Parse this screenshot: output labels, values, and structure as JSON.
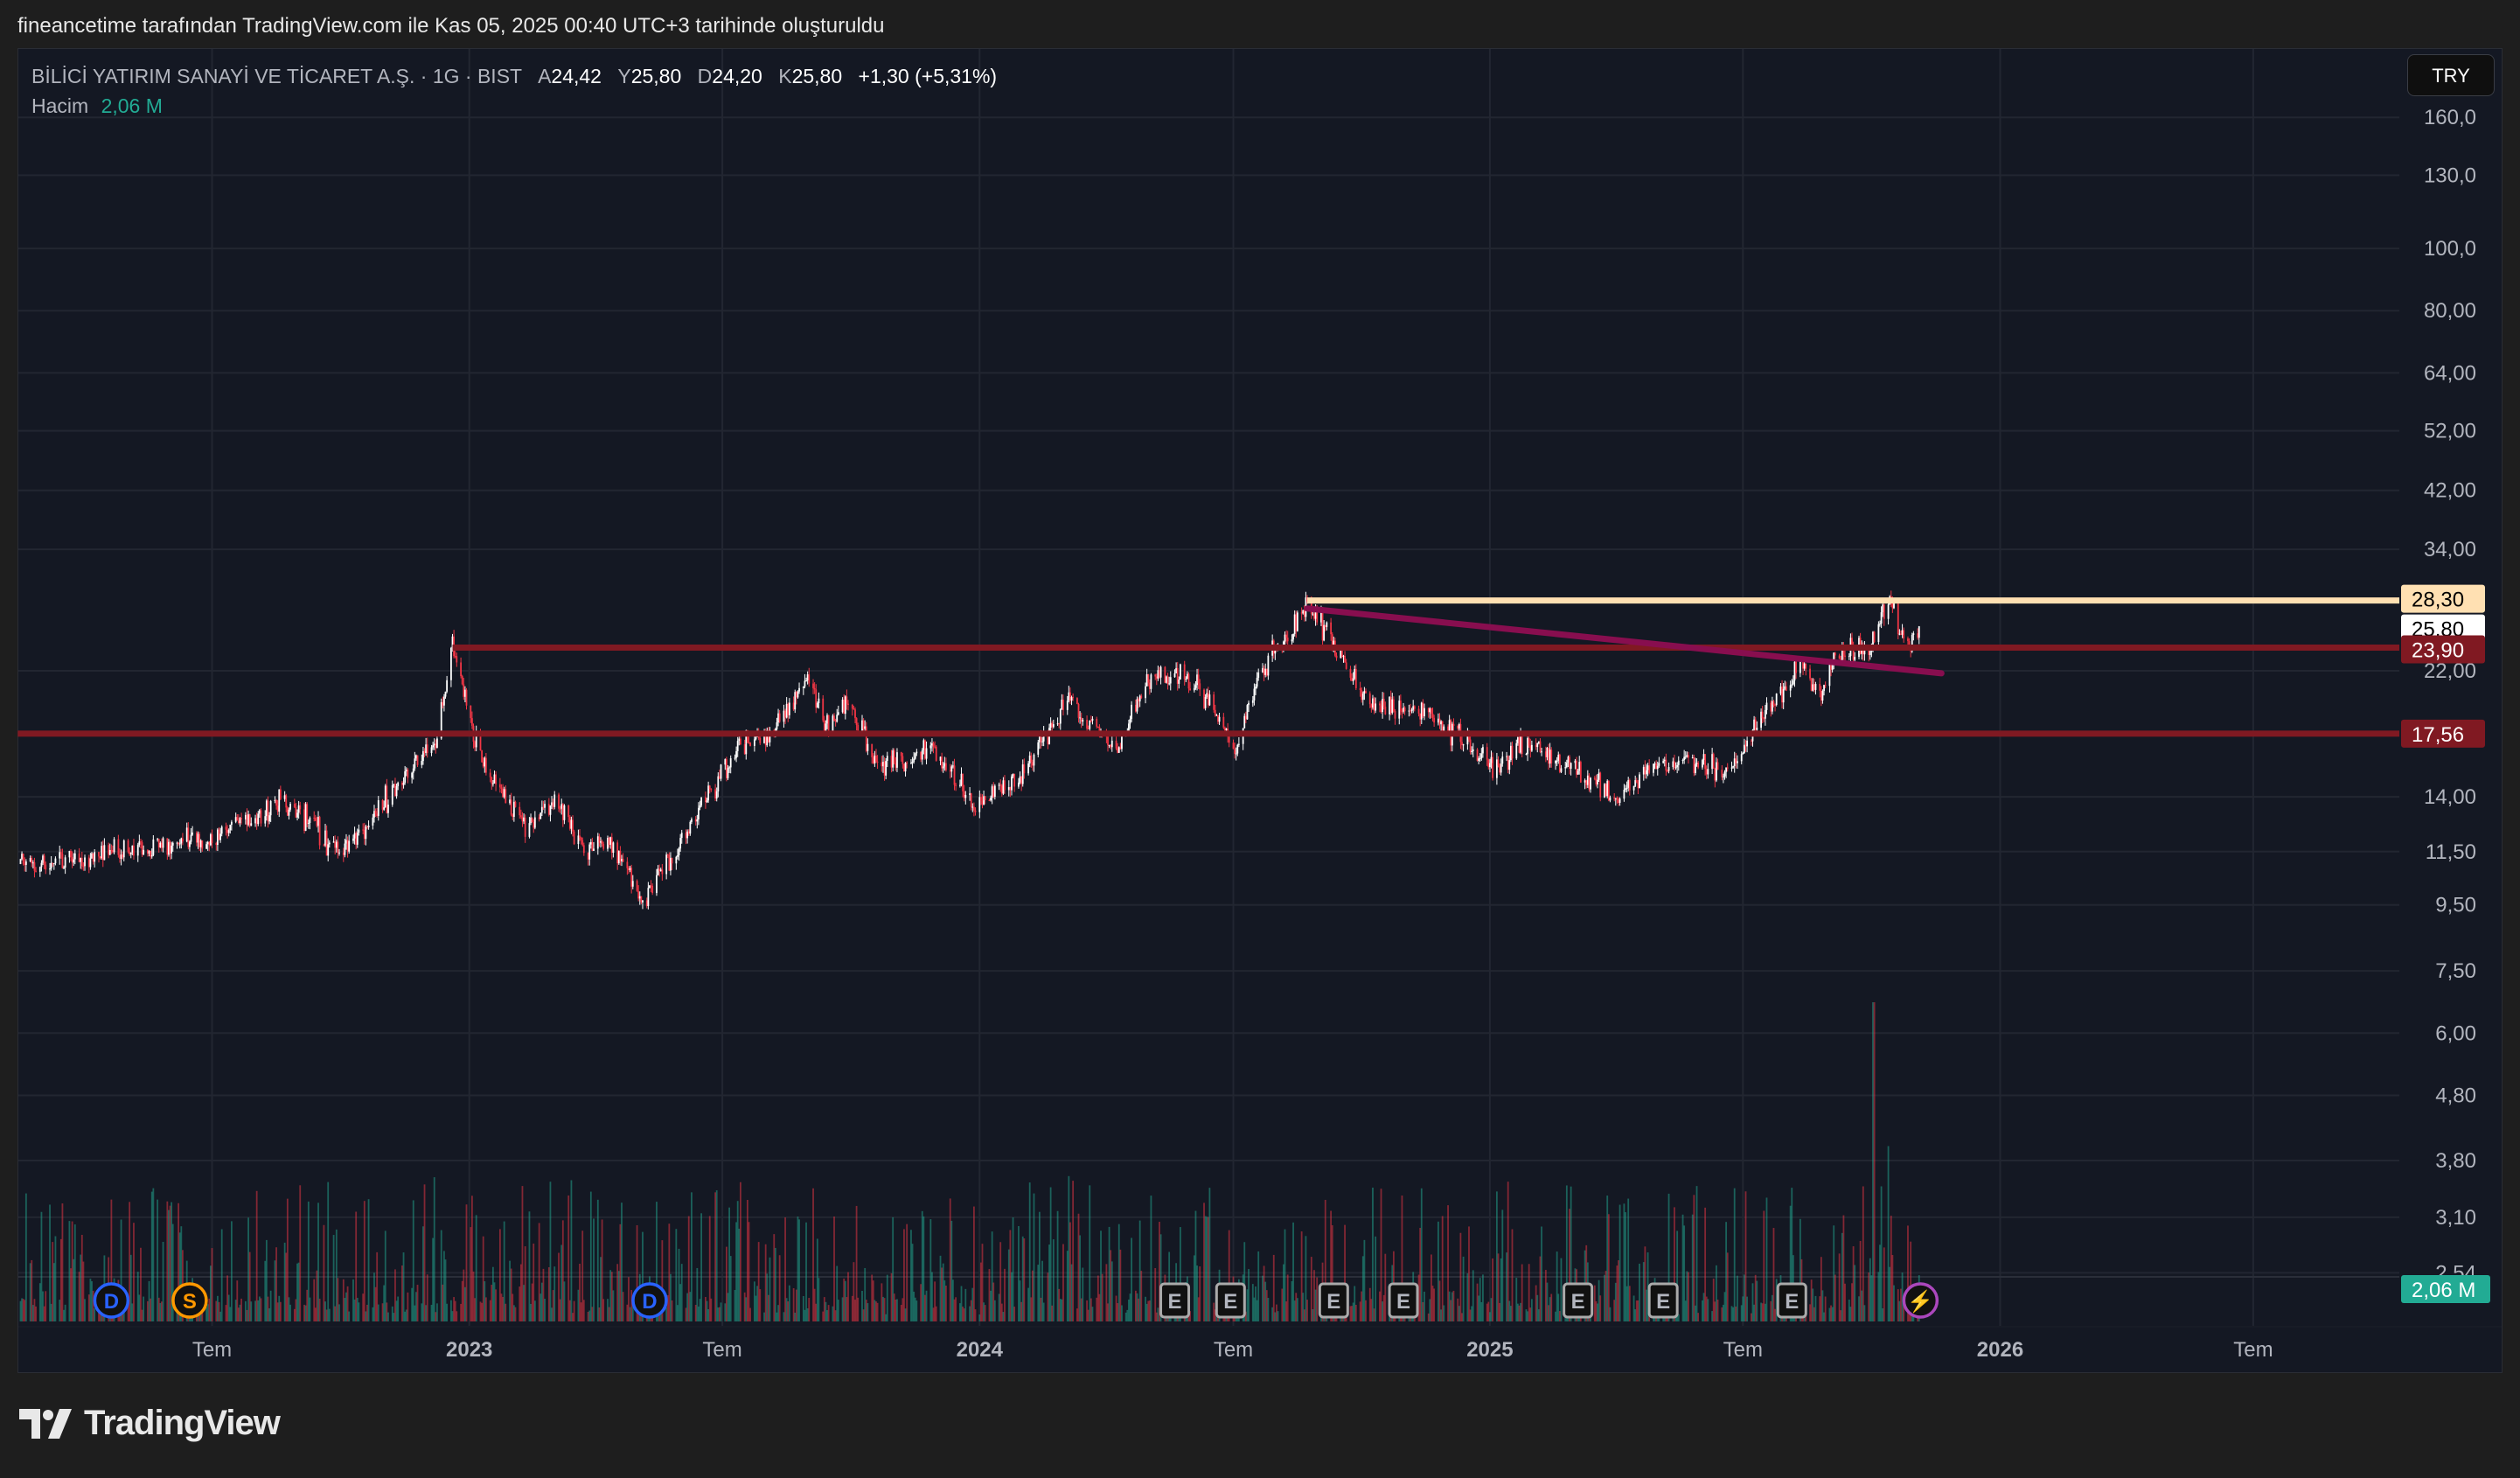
{
  "top_bar": {
    "caption": "fineancetime tarafından TradingView.com ile Kas 05, 2025 00:40 UTC+3 tarihinde oluşturuldu"
  },
  "legend": {
    "symbol": "BİLİCİ YATIRIM SANAYİ VE TİCARET A.Ş. · 1G · BIST",
    "open_label": "A",
    "open": "24,42",
    "high_label": "Y",
    "high": "25,80",
    "low_label": "D",
    "low": "24,20",
    "close_label": "K",
    "close": "25,80",
    "change": "+1,30 (+5,31%)",
    "volume_label": "Hacim",
    "volume": "2,06 M"
  },
  "currency_button": "TRY",
  "footer": {
    "brand": "TradingView"
  },
  "colors": {
    "up": "#ffffff",
    "down": "#f23645",
    "vol_up": "#22ab94",
    "vol_down": "#f23645",
    "resistance": "#ffe0b2",
    "support": "#801922",
    "trendline": "#880e4f",
    "volume_tag": "#22ab94"
  },
  "chart_data": {
    "type": "candlestick",
    "scale": "log",
    "grid": true,
    "price_ticks": [
      "160,0",
      "130,0",
      "100,0",
      "80,00",
      "64,00",
      "52,00",
      "42,00",
      "34,00",
      "22,00",
      "14,00",
      "11,50",
      "9,50",
      "7,50",
      "6,00",
      "4,80",
      "3,80",
      "3,10",
      "2,54"
    ],
    "price_tick_values": [
      160,
      130,
      100,
      80,
      64,
      52,
      42,
      34,
      22,
      14,
      11.5,
      9.5,
      7.5,
      6,
      4.8,
      3.8,
      3.1,
      2.54
    ],
    "time_ticks": [
      {
        "label": "Tem",
        "date": "2022-07-01",
        "major": false
      },
      {
        "label": "2023",
        "date": "2023-01-01",
        "major": true
      },
      {
        "label": "Tem",
        "date": "2023-07-01",
        "major": false
      },
      {
        "label": "2024",
        "date": "2024-01-01",
        "major": true
      },
      {
        "label": "Tem",
        "date": "2024-07-01",
        "major": false
      },
      {
        "label": "2025",
        "date": "2025-01-01",
        "major": true
      },
      {
        "label": "Tem",
        "date": "2025-07-01",
        "major": false
      },
      {
        "label": "2026",
        "date": "2026-01-01",
        "major": true
      },
      {
        "label": "Tem",
        "date": "2026-07-01",
        "major": false
      }
    ],
    "close_path": [
      [
        "2022-02-12",
        11.0
      ],
      [
        "2022-07-01",
        12.0
      ],
      [
        "2022-08-20",
        13.8
      ],
      [
        "2022-10-02",
        11.4
      ],
      [
        "2022-11-10",
        14.5
      ],
      [
        "2022-12-10",
        17.5
      ],
      [
        "2022-12-20",
        24.0
      ],
      [
        "2023-01-10",
        16.0
      ],
      [
        "2023-02-08",
        12.5
      ],
      [
        "2023-03-05",
        14.0
      ],
      [
        "2023-03-25",
        11.5
      ],
      [
        "2023-04-12",
        12.0
      ],
      [
        "2023-05-05",
        9.6
      ],
      [
        "2023-05-28",
        11.5
      ],
      [
        "2023-06-20",
        14.0
      ],
      [
        "2023-07-15",
        17.0
      ],
      [
        "2023-08-05",
        17.5
      ],
      [
        "2023-08-30",
        21.0
      ],
      [
        "2023-09-15",
        18.0
      ],
      [
        "2023-09-28",
        20.0
      ],
      [
        "2023-10-20",
        15.5
      ],
      [
        "2023-12-01",
        16.5
      ],
      [
        "2023-12-28",
        13.5
      ],
      [
        "2024-01-30",
        15.0
      ],
      [
        "2024-03-05",
        20.0
      ],
      [
        "2024-04-08",
        16.5
      ],
      [
        "2024-05-05",
        22.0
      ],
      [
        "2024-06-05",
        21.0
      ],
      [
        "2024-07-03",
        16.5
      ],
      [
        "2024-07-20",
        22.0
      ],
      [
        "2024-08-08",
        25.0
      ],
      [
        "2024-08-23",
        28.0
      ],
      [
        "2024-09-12",
        24.0
      ],
      [
        "2024-10-05",
        19.5
      ],
      [
        "2024-11-15",
        19.0
      ],
      [
        "2024-12-12",
        17.5
      ],
      [
        "2024-12-31",
        15.5
      ],
      [
        "2025-01-28",
        17.0
      ],
      [
        "2025-02-26",
        15.5
      ],
      [
        "2025-04-01",
        14.0
      ],
      [
        "2025-04-24",
        15.5
      ],
      [
        "2025-05-22",
        16.0
      ],
      [
        "2025-06-20",
        15.5
      ],
      [
        "2025-07-07",
        17.5
      ],
      [
        "2025-07-25",
        20.0
      ],
      [
        "2025-08-12",
        23.0
      ],
      [
        "2025-08-24",
        20.0
      ],
      [
        "2025-09-10",
        23.5
      ],
      [
        "2025-09-28",
        24.0
      ],
      [
        "2025-10-13",
        28.3
      ],
      [
        "2025-10-27",
        24.0
      ],
      [
        "2025-11-04",
        25.8
      ]
    ],
    "volume_spike": {
      "date": "2025-10-03"
    },
    "horizontal_lines": [
      {
        "price": 28.3,
        "label": "28,30",
        "from": "2024-08-23",
        "color": "#ffe0b2",
        "text_color": "#000000"
      },
      {
        "price": 23.9,
        "label": "23,90",
        "from": "2022-12-20",
        "color": "#801922",
        "text_color": "#ffffff"
      },
      {
        "price": 17.56,
        "label": "17,56",
        "from": "2022-02-12",
        "color": "#801922",
        "text_color": "#ffffff"
      }
    ],
    "last_price": {
      "price": 25.8,
      "label": "25,80"
    },
    "volume_last": {
      "label": "2,06 M"
    },
    "trendline": {
      "start": [
        "2024-08-23",
        27.5
      ],
      "end": [
        "2025-11-20",
        21.8
      ]
    },
    "events": [
      {
        "type": "D",
        "date": "2022-04-20",
        "kind": "dividend"
      },
      {
        "type": "S",
        "date": "2022-06-15",
        "kind": "split"
      },
      {
        "type": "D",
        "date": "2023-05-10",
        "kind": "dividend"
      },
      {
        "type": "E",
        "date": "2024-05-20",
        "kind": "earnings"
      },
      {
        "type": "E",
        "date": "2024-06-29",
        "kind": "earnings"
      },
      {
        "type": "E",
        "date": "2024-09-11",
        "kind": "earnings"
      },
      {
        "type": "E",
        "date": "2024-10-31",
        "kind": "earnings"
      },
      {
        "type": "E",
        "date": "2025-03-05",
        "kind": "earnings"
      },
      {
        "type": "E",
        "date": "2025-05-05",
        "kind": "earnings"
      },
      {
        "type": "E",
        "date": "2025-08-05",
        "kind": "earnings"
      },
      {
        "type": "⚡",
        "date": "2025-11-05",
        "kind": "news"
      }
    ]
  }
}
